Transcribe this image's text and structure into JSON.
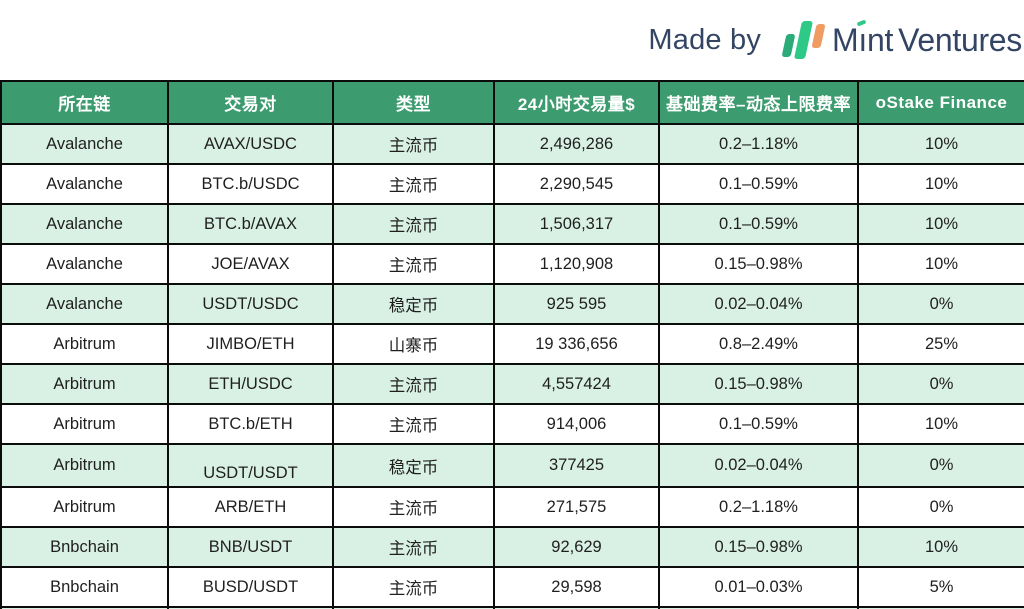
{
  "branding": {
    "made_by": "Made by",
    "brand": "Mint Ventures",
    "brand_parts": {
      "m": "M",
      "i": "ı",
      "nt": "nt",
      "ventures": "Ventures"
    },
    "colors": {
      "text": "#344564",
      "logo_green": "#2ec987",
      "logo_green_dark": "#2aab77",
      "logo_orange": "#f09b61"
    }
  },
  "chart_data": {
    "type": "table",
    "title": "",
    "columns": [
      "所在链",
      "交易对",
      "类型",
      "24小时交易量$",
      "基础费率–动态上限费率",
      "oStake Finance"
    ],
    "rows": [
      [
        "Avalanche",
        "AVAX/USDC",
        "主流币",
        "2,496,286",
        "0.2–1.18%",
        "10%"
      ],
      [
        "Avalanche",
        "BTC.b/USDC",
        "主流币",
        "2,290,545",
        "0.1–0.59%",
        "10%"
      ],
      [
        "Avalanche",
        "BTC.b/AVAX",
        "主流币",
        "1,506,317",
        "0.1–0.59%",
        "10%"
      ],
      [
        "Avalanche",
        "JOE/AVAX",
        "主流币",
        "1,120,908",
        "0.15–0.98%",
        "10%"
      ],
      [
        "Avalanche",
        "USDT/USDC",
        "稳定币",
        "925 595",
        "0.02–0.04%",
        "0%"
      ],
      [
        "Arbitrum",
        "JIMBO/ETH",
        "山寨币",
        "19 336,656",
        "0.8–2.49%",
        "25%"
      ],
      [
        "Arbitrum",
        "ETH/USDC",
        "主流币",
        "4,557424",
        "0.15–0.98%",
        "0%"
      ],
      [
        "Arbitrum",
        "BTC.b/ETH",
        "主流币",
        "914,006",
        "0.1–0.59%",
        "10%"
      ],
      [
        "Arbitrum",
        "USDT/USDT",
        "稳定币",
        "377425",
        "0.02–0.04%",
        "0%"
      ],
      [
        "Arbitrum",
        "ARB/ETH",
        "主流币",
        "271,575",
        "0.2–1.18%",
        "0%"
      ],
      [
        "Bnbchain",
        "BNB/USDT",
        "主流币",
        "92,629",
        "0.15–0.98%",
        "10%"
      ],
      [
        "Bnbchain",
        "BUSD/USDT",
        "主流币",
        "29,598",
        "0.01–0.03%",
        "5%"
      ]
    ],
    "striped_row_indices": [
      0,
      2,
      4,
      6,
      8,
      10
    ],
    "low_baseline_cells": [
      {
        "row": 8,
        "col": 1
      }
    ],
    "partial_next_row_visible": true,
    "layout": {
      "grid": true,
      "header_position": "top"
    },
    "colors": {
      "header_bg": "#3d9b70",
      "header_text": "#ffffff",
      "stripe_bg": "#d9f0e5",
      "row_bg": "#ffffff",
      "border": "#0b0b0b",
      "cell_text": "#1f1f1f"
    }
  }
}
